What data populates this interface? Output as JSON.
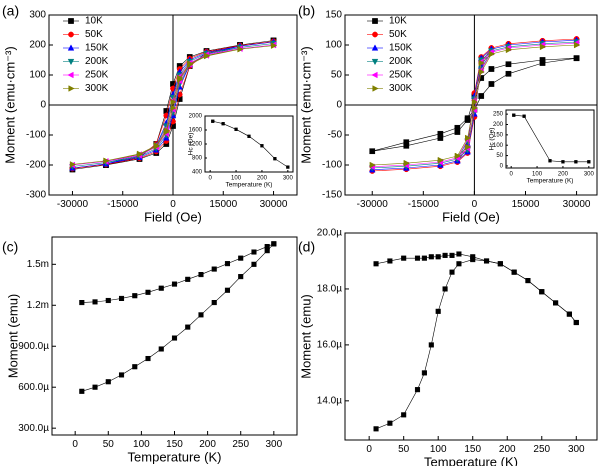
{
  "chart_data": [
    {
      "label": "(a)",
      "type": "line",
      "xlabel": "Field (Oe)",
      "ylabel": "Moment (emu·cm⁻³)",
      "x": [
        30000,
        20000,
        10000,
        5000,
        2000,
        0,
        -2000,
        -5000,
        -10000,
        -20000,
        -30000,
        -20000,
        -10000,
        -5000,
        -2000,
        0,
        2000,
        5000,
        10000,
        20000,
        30000
      ],
      "xlim": [
        -37000,
        37000
      ],
      "xticks": [
        -30000,
        -15000,
        0,
        15000,
        30000
      ],
      "ylim": [
        -300,
        300
      ],
      "yticks": [
        -300,
        -200,
        -100,
        0,
        100,
        200,
        300
      ],
      "zero_lines": true,
      "legend": "upper left",
      "series": [
        {
          "name": "10K",
          "color": "#000000",
          "marker": "square",
          "values": [
            215,
            200,
            180,
            160,
            130,
            70,
            -20,
            -130,
            -175,
            -200,
            -215,
            -200,
            -180,
            -160,
            -130,
            -70,
            20,
            130,
            175,
            200,
            215
          ]
        },
        {
          "name": "50K",
          "color": "#ff0000",
          "marker": "circle",
          "values": [
            212,
            198,
            178,
            155,
            120,
            55,
            -35,
            -130,
            -172,
            -198,
            -212,
            -198,
            -178,
            -155,
            -120,
            -55,
            35,
            130,
            172,
            198,
            212
          ]
        },
        {
          "name": "150K",
          "color": "#0000ff",
          "marker": "triangle-up",
          "values": [
            210,
            196,
            175,
            150,
            110,
            35,
            -60,
            -135,
            -170,
            -196,
            -210,
            -196,
            -175,
            -150,
            -110,
            -35,
            60,
            135,
            170,
            196,
            210
          ]
        },
        {
          "name": "200K",
          "color": "#008080",
          "marker": "triangle-down",
          "values": [
            205,
            192,
            172,
            145,
            100,
            25,
            -70,
            -135,
            -168,
            -192,
            -205,
            -192,
            -172,
            -145,
            -100,
            -25,
            70,
            135,
            168,
            192,
            205
          ]
        },
        {
          "name": "250K",
          "color": "#ff00ff",
          "marker": "triangle-left",
          "values": [
            200,
            188,
            168,
            140,
            95,
            15,
            -80,
            -135,
            -165,
            -188,
            -200,
            -188,
            -168,
            -140,
            -95,
            -15,
            80,
            135,
            165,
            188,
            200
          ]
        },
        {
          "name": "300K",
          "color": "#808000",
          "marker": "triangle-right",
          "values": [
            198,
            186,
            165,
            138,
            90,
            10,
            -85,
            -135,
            -163,
            -186,
            -198,
            -186,
            -165,
            -138,
            -90,
            -10,
            85,
            135,
            163,
            186,
            198
          ]
        }
      ],
      "inset": {
        "type": "line",
        "xlabel": "Temperature (K)",
        "ylabel": "Hc (Oe)",
        "x": [
          10,
          50,
          100,
          150,
          200,
          250,
          300
        ],
        "xlim": [
          -20,
          320
        ],
        "xticks": [
          0,
          100,
          200,
          300
        ],
        "ylim": [
          400,
          2000
        ],
        "yticks": [
          400,
          800,
          1200,
          1600,
          2000
        ],
        "series": [
          {
            "color": "#000000",
            "marker": "square",
            "values": [
              1850,
              1780,
              1620,
              1420,
              1150,
              780,
              540
            ]
          }
        ]
      }
    },
    {
      "label": "(b)",
      "type": "line",
      "xlabel": "Field (Oe)",
      "ylabel": "Moment (emu·cm⁻³)",
      "x": [
        30000,
        20000,
        10000,
        5000,
        2000,
        0,
        -2000,
        -5000,
        -10000,
        -20000,
        -30000,
        -20000,
        -10000,
        -5000,
        -2000,
        0,
        2000,
        5000,
        10000,
        20000,
        30000
      ],
      "xlim": [
        -38000,
        36000
      ],
      "xticks": [
        -30000,
        -15000,
        0,
        15000,
        30000
      ],
      "ylim": [
        -150,
        150
      ],
      "yticks": [
        -150,
        -100,
        -50,
        0,
        50,
        100,
        150
      ],
      "zero_lines": true,
      "legend": "upper left",
      "series": [
        {
          "name": "10K",
          "color": "#000000",
          "marker": "square",
          "values": [
            78,
            75,
            68,
            60,
            45,
            15,
            -25,
            -45,
            -55,
            -68,
            -77,
            -62,
            -48,
            -38,
            -22,
            -8,
            15,
            35,
            52,
            70,
            78
          ]
        },
        {
          "name": "50K",
          "color": "#ff0000",
          "marker": "circle",
          "values": [
            110,
            107,
            102,
            95,
            80,
            20,
            -70,
            -95,
            -102,
            -107,
            -110,
            -107,
            -102,
            -95,
            -80,
            -20,
            70,
            95,
            102,
            107,
            110
          ]
        },
        {
          "name": "150K",
          "color": "#0000ff",
          "marker": "triangle-up",
          "values": [
            108,
            105,
            100,
            93,
            78,
            15,
            -65,
            -93,
            -100,
            -105,
            -108,
            -105,
            -100,
            -93,
            -78,
            -15,
            65,
            93,
            100,
            105,
            108
          ]
        },
        {
          "name": "200K",
          "color": "#008080",
          "marker": "triangle-down",
          "values": [
            105,
            102,
            97,
            90,
            75,
            10,
            -60,
            -90,
            -97,
            -102,
            -105,
            -102,
            -97,
            -90,
            -75,
            -10,
            60,
            90,
            97,
            102,
            105
          ]
        },
        {
          "name": "250K",
          "color": "#ff00ff",
          "marker": "triangle-left",
          "values": [
            103,
            100,
            95,
            88,
            72,
            8,
            -58,
            -88,
            -95,
            -100,
            -103,
            -100,
            -95,
            -88,
            -72,
            -8,
            58,
            88,
            95,
            100,
            103
          ]
        },
        {
          "name": "300K",
          "color": "#808000",
          "marker": "triangle-right",
          "values": [
            100,
            97,
            92,
            85,
            70,
            5,
            -55,
            -85,
            -92,
            -97,
            -100,
            -97,
            -92,
            -85,
            -70,
            -5,
            55,
            85,
            92,
            97,
            100
          ]
        }
      ],
      "inset": {
        "type": "line",
        "xlabel": "Temperature (K)",
        "ylabel": "Hc (Oe)",
        "x": [
          10,
          50,
          150,
          200,
          250,
          300
        ],
        "xlim": [
          -20,
          320
        ],
        "xticks": [
          0,
          100,
          200,
          300
        ],
        "ylim": [
          -10,
          270
        ],
        "yticks": [
          0,
          50,
          100,
          150,
          200,
          250
        ],
        "series": [
          {
            "color": "#000000",
            "marker": "square",
            "values": [
              245,
              240,
              25,
              20,
              20,
              20
            ]
          }
        ]
      }
    },
    {
      "label": "(c)",
      "type": "line",
      "xlabel": "Temperature (K)",
      "ylabel": "Moment (emu)",
      "x": [
        10,
        30,
        50,
        70,
        90,
        110,
        130,
        150,
        170,
        190,
        210,
        230,
        250,
        270,
        290,
        300
      ],
      "xlim": [
        -35,
        335
      ],
      "xticks": [
        0,
        50,
        100,
        150,
        200,
        250,
        300
      ],
      "ylim": [
        0.00025,
        0.0017
      ],
      "yticks": [
        {
          "value": 0.0003,
          "label": "300.0µ"
        },
        {
          "value": 0.0006,
          "label": "600.0µ"
        },
        {
          "value": 0.0009,
          "label": "900.0µ"
        },
        {
          "value": 0.0012,
          "label": "1.2m"
        },
        {
          "value": 0.0015,
          "label": "1.5m"
        }
      ],
      "series": [
        {
          "color": "#000000",
          "marker": "square",
          "values": [
            0.00057,
            0.0006,
            0.00064,
            0.00069,
            0.00075,
            0.00081,
            0.00088,
            0.00096,
            0.00104,
            0.00113,
            0.00122,
            0.00131,
            0.00141,
            0.0015,
            0.0016,
            0.00165
          ]
        },
        {
          "color": "#000000",
          "marker": "square",
          "values": [
            0.00122,
            0.001225,
            0.001235,
            0.00125,
            0.00127,
            0.001295,
            0.001325,
            0.001355,
            0.00139,
            0.001425,
            0.001465,
            0.001505,
            0.001545,
            0.00159,
            0.00163,
            0.00165
          ]
        }
      ]
    },
    {
      "label": "(d)",
      "type": "line",
      "xlabel": "Temperature (K)",
      "ylabel": "Moment (emu)",
      "x": [
        10,
        30,
        50,
        70,
        80,
        90,
        100,
        110,
        120,
        130,
        150,
        170,
        190,
        210,
        230,
        250,
        270,
        290,
        300
      ],
      "xlim": [
        -35,
        330
      ],
      "xticks": [
        0,
        50,
        100,
        150,
        200,
        250,
        300
      ],
      "ylim": [
        1.26e-05,
        2e-05
      ],
      "yticks": [
        {
          "value": 1.4e-05,
          "label": "14.0µ"
        },
        {
          "value": 1.6e-05,
          "label": "16.0µ"
        },
        {
          "value": 1.8e-05,
          "label": "18.0µ"
        },
        {
          "value": 2e-05,
          "label": "20.0µ"
        }
      ],
      "series": [
        {
          "color": "#000000",
          "marker": "square",
          "values": [
            1.3e-05,
            1.32e-05,
            1.35e-05,
            1.44e-05,
            1.5e-05,
            1.6e-05,
            1.72e-05,
            1.8e-05,
            1.86e-05,
            1.89e-05,
            1.905e-05,
            1.9e-05,
            1.89e-05,
            1.86e-05,
            1.83e-05,
            1.79e-05,
            1.75e-05,
            1.71e-05,
            1.68e-05
          ]
        },
        {
          "color": "#000000",
          "marker": "square",
          "values": [
            1.89e-05,
            1.9e-05,
            1.91e-05,
            1.91e-05,
            1.91e-05,
            1.915e-05,
            1.915e-05,
            1.92e-05,
            1.92e-05,
            1.925e-05,
            1.915e-05,
            1.9e-05,
            1.89e-05,
            1.86e-05,
            1.83e-05,
            1.79e-05,
            1.75e-05,
            1.71e-05,
            1.68e-05
          ]
        }
      ]
    }
  ]
}
